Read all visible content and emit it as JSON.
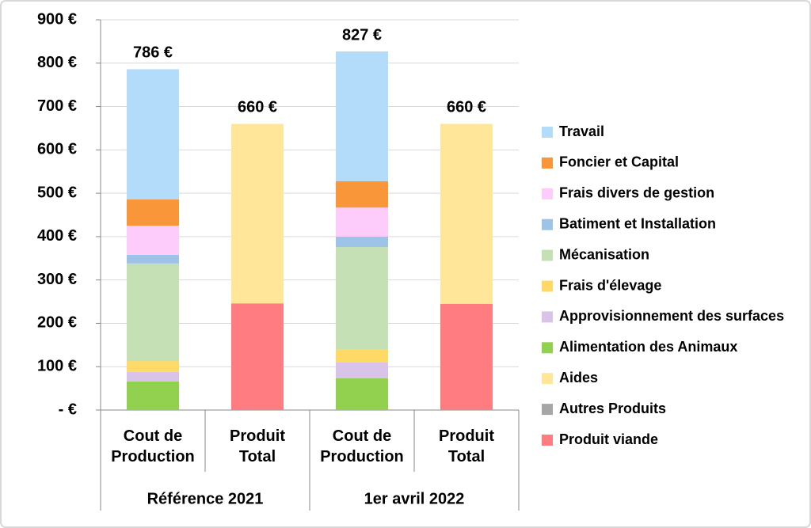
{
  "chart_data": {
    "type": "stacked_bar",
    "categories": [
      "Cout de Production",
      "Produit Total",
      "Cout de Production",
      "Produit Total"
    ],
    "groups": [
      {
        "label": "Référence 2021",
        "size": 2
      },
      {
        "label": "1er avril 2022",
        "size": 2
      }
    ],
    "ylim": [
      0,
      900
    ],
    "yticks": [
      {
        "value": 0,
        "label": "-   €"
      },
      {
        "value": 100,
        "label": "100 €"
      },
      {
        "value": 200,
        "label": "200 €"
      },
      {
        "value": 300,
        "label": "300 €"
      },
      {
        "value": 400,
        "label": "400 €"
      },
      {
        "value": 500,
        "label": "500 €"
      },
      {
        "value": 600,
        "label": "600 €"
      },
      {
        "value": 700,
        "label": "700 €"
      },
      {
        "value": 800,
        "label": "800 €"
      },
      {
        "value": 900,
        "label": "900 €"
      }
    ],
    "grid": true,
    "legend": "right",
    "series": [
      {
        "name": "Travail",
        "color": "#b3dcfb",
        "values": [
          300,
          null,
          299,
          null
        ]
      },
      {
        "name": "Foncier et Capital",
        "color": "#f9963a",
        "values": [
          61,
          null,
          61,
          null
        ]
      },
      {
        "name": "Frais divers de gestion",
        "color": "#fdccfb",
        "values": [
          67,
          null,
          67,
          null
        ]
      },
      {
        "name": "Batiment et Installation",
        "color": "#9dc3e6",
        "values": [
          20,
          null,
          24,
          null
        ]
      },
      {
        "name": "Mécanisation",
        "color": "#c5e0b4",
        "values": [
          225,
          null,
          237,
          null
        ]
      },
      {
        "name": "Frais d'élevage",
        "color": "#ffd966",
        "values": [
          25,
          null,
          29,
          null
        ]
      },
      {
        "name": "Approvisionnement des surfaces",
        "color": "#d9c3e9",
        "values": [
          22,
          null,
          37,
          null
        ]
      },
      {
        "name": "Alimentation des Animaux",
        "color": "#92d050",
        "values": [
          66,
          null,
          73,
          null
        ]
      },
      {
        "name": "Aides",
        "color": "#ffe699",
        "values": [
          null,
          414,
          null,
          415
        ]
      },
      {
        "name": "Autres Produits",
        "color": "#a6a6a6",
        "values": [
          null,
          0,
          null,
          0
        ]
      },
      {
        "name": "Produit viande",
        "color": "#ff7c80",
        "values": [
          null,
          246,
          null,
          245
        ]
      }
    ],
    "totals": {
      "values": [
        786,
        660,
        827,
        660
      ],
      "value_labels": [
        "786 €",
        "660 €",
        "827 €",
        "660 €"
      ]
    }
  }
}
